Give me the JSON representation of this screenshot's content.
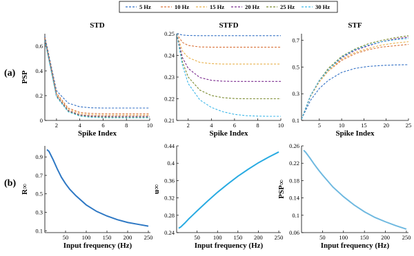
{
  "legend": {
    "entries": [
      {
        "label": "5 Hz",
        "color": "#2f6ec4"
      },
      {
        "label": "10 Hz",
        "color": "#d9733a"
      },
      {
        "label": "15 Hz",
        "color": "#e8b04a"
      },
      {
        "label": "20 Hz",
        "color": "#7a2a8e"
      },
      {
        "label": "25 Hz",
        "color": "#7a8a2e"
      },
      {
        "label": "30 Hz",
        "color": "#3bb6e8"
      }
    ]
  },
  "row_labels": [
    "(a)",
    "(b)"
  ],
  "chart_data": [
    {
      "id": "std",
      "type": "line",
      "title": "STD",
      "xlabel": "Spike Index",
      "ylabel": "PSP",
      "xlim": [
        1,
        10
      ],
      "ylim": [
        0,
        0.7
      ],
      "xticks": [
        2,
        4,
        6,
        8,
        10
      ],
      "yticks": [
        0,
        0.2,
        0.4,
        0.6
      ],
      "tick_labels_y": [
        "0",
        "0.2",
        "0.4",
        "0.6"
      ],
      "x": [
        1,
        2,
        3,
        4,
        5,
        6,
        7,
        8,
        9,
        10
      ],
      "series": [
        {
          "name": "5 Hz",
          "values": [
            0.68,
            0.24,
            0.14,
            0.11,
            0.102,
            0.1,
            0.1,
            0.1,
            0.1,
            0.1
          ]
        },
        {
          "name": "10 Hz",
          "values": [
            0.67,
            0.22,
            0.1,
            0.065,
            0.056,
            0.054,
            0.053,
            0.053,
            0.053,
            0.053
          ]
        },
        {
          "name": "15 Hz",
          "values": [
            0.66,
            0.21,
            0.09,
            0.055,
            0.045,
            0.043,
            0.042,
            0.042,
            0.042,
            0.042
          ]
        },
        {
          "name": "20 Hz",
          "values": [
            0.655,
            0.2,
            0.08,
            0.045,
            0.036,
            0.034,
            0.033,
            0.033,
            0.033,
            0.033
          ]
        },
        {
          "name": "25 Hz",
          "values": [
            0.65,
            0.195,
            0.075,
            0.04,
            0.03,
            0.028,
            0.027,
            0.027,
            0.027,
            0.027
          ]
        },
        {
          "name": "30 Hz",
          "values": [
            0.645,
            0.19,
            0.07,
            0.035,
            0.025,
            0.022,
            0.021,
            0.021,
            0.021,
            0.021
          ]
        }
      ]
    },
    {
      "id": "stfd",
      "type": "line",
      "title": "STFD",
      "xlabel": "Spike Index",
      "ylabel": "",
      "xlim": [
        1,
        10
      ],
      "ylim": [
        0.21,
        0.25
      ],
      "xticks": [
        2,
        4,
        6,
        8,
        10
      ],
      "yticks": [
        0.21,
        0.22,
        0.23,
        0.24,
        0.25
      ],
      "tick_labels_y": [
        "0.21",
        "0.22",
        "0.23",
        "0.24",
        "0.25"
      ],
      "x": [
        1,
        1.5,
        2,
        3,
        4,
        5,
        6,
        7,
        8,
        9,
        10
      ],
      "series": [
        {
          "name": "5 Hz",
          "values": [
            0.25,
            0.2494,
            0.2492,
            0.2491,
            0.2491,
            0.2491,
            0.2491,
            0.2491,
            0.2491,
            0.2491,
            0.2491
          ]
        },
        {
          "name": "10 Hz",
          "values": [
            0.25,
            0.246,
            0.2446,
            0.2439,
            0.2438,
            0.2438,
            0.2438,
            0.2438,
            0.2438,
            0.2438,
            0.2438
          ]
        },
        {
          "name": "15 Hz",
          "values": [
            0.25,
            0.242,
            0.239,
            0.2368,
            0.2362,
            0.236,
            0.236,
            0.236,
            0.236,
            0.236,
            0.236
          ]
        },
        {
          "name": "20 Hz",
          "values": [
            0.25,
            0.239,
            0.234,
            0.2298,
            0.2285,
            0.2281,
            0.228,
            0.228,
            0.228,
            0.228,
            0.228
          ]
        },
        {
          "name": "25 Hz",
          "values": [
            0.25,
            0.237,
            0.23,
            0.224,
            0.2215,
            0.2205,
            0.2201,
            0.22,
            0.22,
            0.22,
            0.22
          ]
        },
        {
          "name": "30 Hz",
          "values": [
            0.25,
            0.2355,
            0.227,
            0.2195,
            0.216,
            0.214,
            0.2128,
            0.2122,
            0.212,
            0.2119,
            0.2119
          ]
        }
      ]
    },
    {
      "id": "stf",
      "type": "line",
      "title": "STF",
      "xlabel": "Spike Index",
      "ylabel": "",
      "xlim": [
        1,
        25
      ],
      "ylim": [
        0.1,
        0.75
      ],
      "xticks": [
        5,
        10,
        15,
        20,
        25
      ],
      "yticks": [
        0.1,
        0.3,
        0.5,
        0.7
      ],
      "tick_labels_y": [
        "0.1",
        "0.3",
        "0.5",
        "0.7"
      ],
      "x": [
        1,
        3,
        5,
        7,
        10,
        13,
        16,
        19,
        22,
        25
      ],
      "series": [
        {
          "name": "5 Hz",
          "values": [
            0.11,
            0.25,
            0.34,
            0.4,
            0.46,
            0.49,
            0.505,
            0.512,
            0.516,
            0.518
          ]
        },
        {
          "name": "10 Hz",
          "values": [
            0.11,
            0.28,
            0.39,
            0.47,
            0.55,
            0.6,
            0.63,
            0.65,
            0.66,
            0.67
          ]
        },
        {
          "name": "15 Hz",
          "values": [
            0.11,
            0.28,
            0.39,
            0.47,
            0.56,
            0.61,
            0.64,
            0.665,
            0.68,
            0.69
          ]
        },
        {
          "name": "20 Hz",
          "values": [
            0.11,
            0.285,
            0.4,
            0.48,
            0.57,
            0.625,
            0.66,
            0.69,
            0.71,
            0.725
          ]
        },
        {
          "name": "25 Hz",
          "values": [
            0.11,
            0.285,
            0.4,
            0.49,
            0.58,
            0.635,
            0.675,
            0.7,
            0.72,
            0.735
          ]
        },
        {
          "name": "30 Hz",
          "values": [
            0.11,
            0.285,
            0.4,
            0.48,
            0.575,
            0.63,
            0.665,
            0.69,
            0.705,
            0.715
          ]
        }
      ]
    },
    {
      "id": "rinf",
      "type": "line",
      "title": "",
      "xlabel": "Input frequency (Hz)",
      "ylabel": "R∞",
      "xlim": [
        0,
        255
      ],
      "ylim": [
        0.08,
        1.02
      ],
      "xticks": [
        50,
        100,
        150,
        200,
        250
      ],
      "yticks": [
        0.1,
        0.3,
        0.5,
        0.7,
        0.9
      ],
      "tick_labels_y": [
        "0.1",
        "0.3",
        "0.5",
        "0.7",
        "0.9"
      ],
      "x": [
        5,
        10,
        20,
        30,
        40,
        50,
        60,
        75,
        100,
        125,
        150,
        175,
        200,
        225,
        250
      ],
      "series": [
        {
          "values": [
            0.98,
            0.96,
            0.87,
            0.77,
            0.68,
            0.61,
            0.55,
            0.48,
            0.38,
            0.31,
            0.26,
            0.22,
            0.19,
            0.17,
            0.15
          ],
          "color": "#2e78c4"
        }
      ]
    },
    {
      "id": "uinf",
      "type": "line",
      "title": "",
      "xlabel": "Input frequency (Hz)",
      "ylabel": "u∞",
      "xlim": [
        0,
        255
      ],
      "ylim": [
        0.24,
        0.44
      ],
      "xticks": [
        50,
        100,
        150,
        200,
        250
      ],
      "yticks": [
        0.24,
        0.28,
        0.32,
        0.36,
        0.4,
        0.44
      ],
      "tick_labels_y": [
        "0.24",
        "0.28",
        "0.32",
        "0.36",
        "0.4",
        "0.44"
      ],
      "x": [
        5,
        10,
        20,
        30,
        40,
        50,
        75,
        100,
        125,
        150,
        175,
        200,
        225,
        250
      ],
      "series": [
        {
          "values": [
            0.25,
            0.253,
            0.262,
            0.272,
            0.281,
            0.29,
            0.312,
            0.333,
            0.352,
            0.37,
            0.386,
            0.401,
            0.414,
            0.426
          ],
          "color": "#29abe2"
        }
      ]
    },
    {
      "id": "pspinf",
      "type": "line",
      "title": "",
      "xlabel": "Input frequency (Hz)",
      "ylabel": "PSP∞",
      "xlim": [
        0,
        255
      ],
      "ylim": [
        0.06,
        0.26
      ],
      "xticks": [
        50,
        100,
        150,
        200,
        250
      ],
      "yticks": [
        0.06,
        0.1,
        0.14,
        0.18,
        0.22,
        0.26
      ],
      "tick_labels_y": [
        "0.06",
        "0.1",
        "0.14",
        "0.18",
        "0.22",
        "0.26"
      ],
      "x": [
        5,
        10,
        20,
        30,
        40,
        50,
        75,
        100,
        125,
        150,
        175,
        200,
        225,
        250
      ],
      "series": [
        {
          "values": [
            0.25,
            0.245,
            0.232,
            0.218,
            0.205,
            0.193,
            0.165,
            0.143,
            0.124,
            0.108,
            0.095,
            0.085,
            0.076,
            0.068
          ],
          "color": "#6fb9e0"
        }
      ]
    }
  ]
}
